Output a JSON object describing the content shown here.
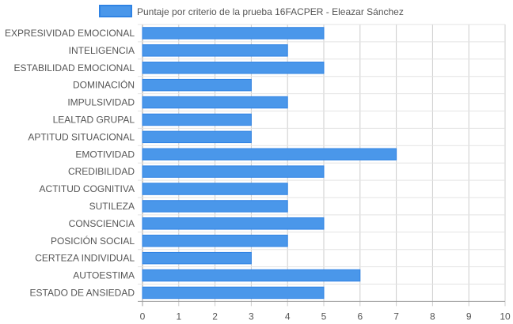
{
  "chart_data": {
    "type": "bar",
    "orientation": "horizontal",
    "title": "",
    "xlabel": "",
    "ylabel": "",
    "xlim": [
      0,
      10
    ],
    "x_ticks": [
      "0",
      "1",
      "2",
      "3",
      "4",
      "5",
      "6",
      "7",
      "8",
      "9",
      "10"
    ],
    "grid": true,
    "legend_position": "top",
    "categories": [
      "EXPRESIVIDAD EMOCIONAL",
      "INTELIGENCIA",
      "ESTABILIDAD EMOCIONAL",
      "DOMINACIÓN",
      "IMPULSIVIDAD",
      "LEALTAD GRUPAL",
      "APTITUD SITUACIONAL",
      "EMOTIVIDAD",
      "CREDIBILIDAD",
      "ACTITUD COGNITIVA",
      "SUTILEZA",
      "CONSCIENCIA",
      "POSICIÓN SOCIAL",
      "CERTEZA INDIVIDUAL",
      "AUTOESTIMA",
      "ESTADO DE ANSIEDAD"
    ],
    "series": [
      {
        "name": "Puntaje por criterio de la prueba 16FACPER - Eleazar Sánchez",
        "values": [
          5,
          4,
          5,
          3,
          4,
          3,
          3,
          7,
          5,
          4,
          4,
          5,
          4,
          3,
          6,
          5
        ],
        "color": "#4a97ea",
        "border_color": "#2f83e4"
      }
    ]
  }
}
